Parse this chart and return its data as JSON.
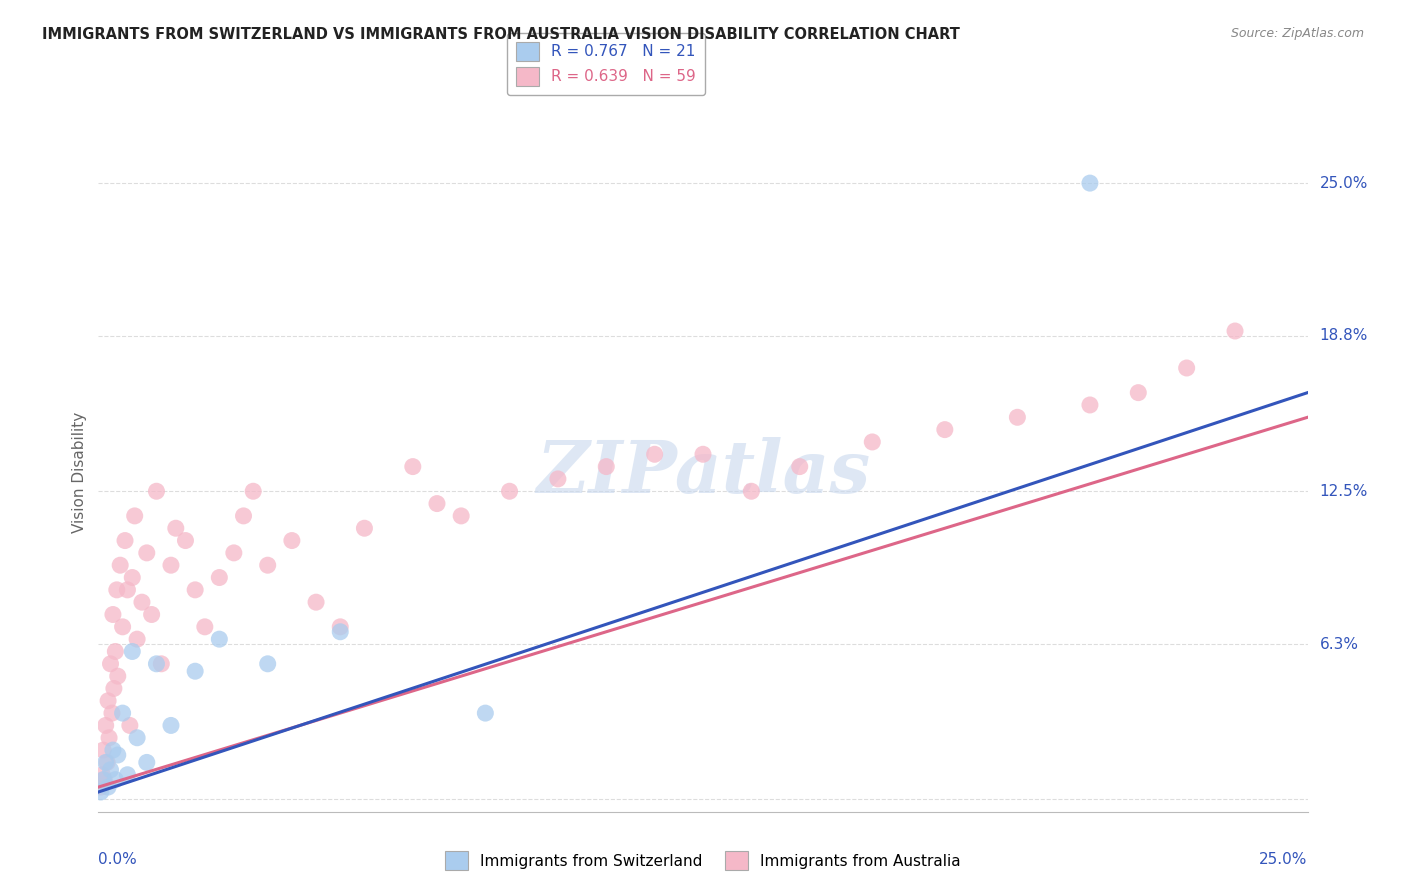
{
  "title": "IMMIGRANTS FROM SWITZERLAND VS IMMIGRANTS FROM AUSTRALIA VISION DISABILITY CORRELATION CHART",
  "source": "Source: ZipAtlas.com",
  "ylabel": "Vision Disability",
  "ytick_values": [
    0.0,
    6.3,
    12.5,
    18.8,
    25.0
  ],
  "ytick_labels": [
    "",
    "6.3%",
    "12.5%",
    "18.8%",
    "25.0%"
  ],
  "xrange": [
    0.0,
    25.0
  ],
  "yrange": [
    -0.5,
    27.0
  ],
  "legend_line1": "R = 0.767   N = 21",
  "legend_line2": "R = 0.639   N = 59",
  "color_switzerland": "#aaccee",
  "color_australia": "#f5b8c8",
  "line_color_switzerland": "#3355bb",
  "line_color_australia": "#dd6688",
  "sw_line_start_y": 0.3,
  "sw_line_end_y": 16.5,
  "au_line_start_y": 0.5,
  "au_line_end_y": 15.5,
  "watermark_text": "ZIPatlas",
  "watermark_color": "#c8d8ee",
  "background_color": "#ffffff",
  "grid_color": "#dddddd",
  "sw_x": [
    0.05,
    0.1,
    0.15,
    0.2,
    0.25,
    0.3,
    0.35,
    0.4,
    0.5,
    0.6,
    0.7,
    0.8,
    1.0,
    1.2,
    1.5,
    2.0,
    2.5,
    3.5,
    5.0,
    8.0,
    20.5
  ],
  "sw_y": [
    0.3,
    0.8,
    1.5,
    0.5,
    1.2,
    2.0,
    0.8,
    1.8,
    3.5,
    1.0,
    6.0,
    2.5,
    1.5,
    5.5,
    3.0,
    5.2,
    6.5,
    5.5,
    6.8,
    3.5,
    25.0
  ],
  "au_x": [
    0.05,
    0.08,
    0.1,
    0.12,
    0.15,
    0.18,
    0.2,
    0.22,
    0.25,
    0.28,
    0.3,
    0.32,
    0.35,
    0.38,
    0.4,
    0.45,
    0.5,
    0.55,
    0.6,
    0.65,
    0.7,
    0.75,
    0.8,
    0.9,
    1.0,
    1.1,
    1.2,
    1.3,
    1.5,
    1.6,
    1.8,
    2.0,
    2.2,
    2.5,
    2.8,
    3.0,
    3.2,
    3.5,
    4.0,
    4.5,
    5.0,
    5.5,
    6.5,
    7.0,
    7.5,
    8.5,
    9.5,
    10.5,
    11.5,
    12.5,
    13.5,
    14.5,
    16.0,
    17.5,
    19.0,
    20.5,
    21.5,
    22.5,
    23.5
  ],
  "au_y": [
    0.5,
    1.0,
    2.0,
    0.8,
    3.0,
    1.5,
    4.0,
    2.5,
    5.5,
    3.5,
    7.5,
    4.5,
    6.0,
    8.5,
    5.0,
    9.5,
    7.0,
    10.5,
    8.5,
    3.0,
    9.0,
    11.5,
    6.5,
    8.0,
    10.0,
    7.5,
    12.5,
    5.5,
    9.5,
    11.0,
    10.5,
    8.5,
    7.0,
    9.0,
    10.0,
    11.5,
    12.5,
    9.5,
    10.5,
    8.0,
    7.0,
    11.0,
    13.5,
    12.0,
    11.5,
    12.5,
    13.0,
    13.5,
    14.0,
    14.0,
    12.5,
    13.5,
    14.5,
    15.0,
    15.5,
    16.0,
    16.5,
    17.5,
    19.0
  ]
}
